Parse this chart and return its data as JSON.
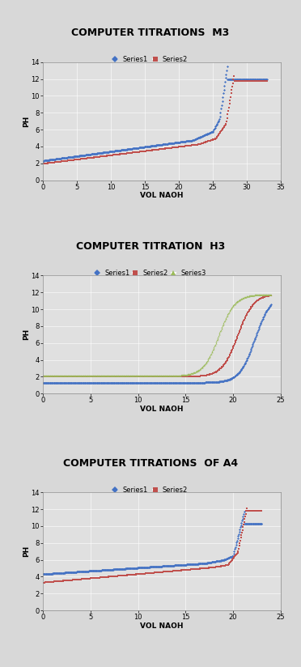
{
  "charts": [
    {
      "title": "COMPUTER TITRATIONS  M3",
      "xlabel": "VOL NAOH",
      "ylabel": "PH",
      "xlim": [
        0,
        35
      ],
      "ylim": [
        0,
        14
      ],
      "xticks": [
        0,
        5,
        10,
        15,
        20,
        25,
        30,
        35
      ],
      "yticks": [
        0,
        2,
        4,
        6,
        8,
        10,
        12,
        14
      ],
      "series": [
        {
          "label": "Series1",
          "color": "#4472C4",
          "marker": "D"
        },
        {
          "label": "Series2",
          "color": "#C0504D",
          "marker": "s"
        }
      ]
    },
    {
      "title": "COMPUTER TITRATION  H3",
      "xlabel": "VOL NAOH",
      "ylabel": "PH",
      "xlim": [
        0,
        25
      ],
      "ylim": [
        0,
        14
      ],
      "xticks": [
        0,
        5,
        10,
        15,
        20,
        25
      ],
      "yticks": [
        0,
        2,
        4,
        6,
        8,
        10,
        12,
        14
      ],
      "series": [
        {
          "label": "Series1",
          "color": "#4472C4",
          "marker": "D"
        },
        {
          "label": "Series2",
          "color": "#C0504D",
          "marker": "s"
        },
        {
          "label": "Series3",
          "color": "#9BBB59",
          "marker": "^"
        }
      ]
    },
    {
      "title": "COMPUTER TITRATIONS  OF A4",
      "xlabel": "VOL NAOH",
      "ylabel": "PH",
      "xlim": [
        0,
        25
      ],
      "ylim": [
        0,
        14
      ],
      "xticks": [
        0,
        5,
        10,
        15,
        20,
        25
      ],
      "yticks": [
        0,
        2,
        4,
        6,
        8,
        10,
        12,
        14
      ],
      "series": [
        {
          "label": "Series1",
          "color": "#4472C4",
          "marker": "D"
        },
        {
          "label": "Series2",
          "color": "#C0504D",
          "marker": "s"
        }
      ]
    }
  ],
  "title_fontsize": 9,
  "label_fontsize": 6.5,
  "tick_fontsize": 6,
  "legend_fontsize": 6
}
